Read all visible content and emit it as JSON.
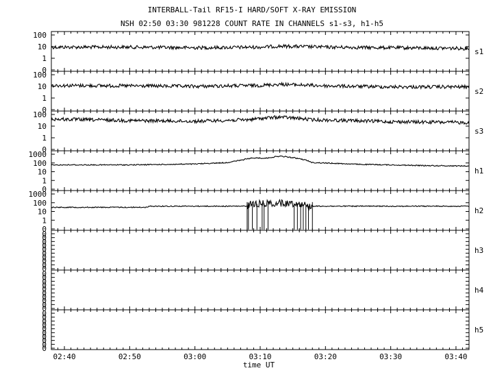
{
  "title_line1": "INTERBALL-Tail RF15-I HARD/SOFT X-RAY EMISSION",
  "title_line2": "NSH 02:50 03:30 981228  COUNT RATE IN CHANNELS s1-s3, h1-h5",
  "xlabel": "time UT",
  "chart_data": {
    "type": "line",
    "x_unit": "time UT",
    "x_range": [
      "02:38",
      "03:42"
    ],
    "x_ticks": [
      "02:40",
      "02:50",
      "03:00",
      "03:10",
      "03:20",
      "03:30",
      "03:40"
    ],
    "y_scale": "log",
    "panels": [
      {
        "name": "s1",
        "y_ticks": [
          "100",
          "10",
          "1",
          "0"
        ],
        "points": [
          [
            "02:38",
            9
          ],
          [
            "02:50",
            9
          ],
          [
            "03:00",
            8
          ],
          [
            "03:10",
            9
          ],
          [
            "03:13",
            11
          ],
          [
            "03:20",
            9
          ],
          [
            "03:30",
            8
          ],
          [
            "03:42",
            7
          ]
        ]
      },
      {
        "name": "s2",
        "y_ticks": [
          "100",
          "10",
          "1",
          "0"
        ],
        "points": [
          [
            "02:38",
            12
          ],
          [
            "02:50",
            11
          ],
          [
            "03:00",
            10
          ],
          [
            "03:10",
            12
          ],
          [
            "03:13",
            15
          ],
          [
            "03:20",
            11
          ],
          [
            "03:30",
            9
          ],
          [
            "03:42",
            9
          ]
        ]
      },
      {
        "name": "s3",
        "y_ticks": [
          "100",
          "10",
          "1",
          "0"
        ],
        "points": [
          [
            "02:38",
            40
          ],
          [
            "02:50",
            30
          ],
          [
            "03:00",
            26
          ],
          [
            "03:08",
            35
          ],
          [
            "03:13",
            60
          ],
          [
            "03:18",
            35
          ],
          [
            "03:30",
            24
          ],
          [
            "03:42",
            20
          ]
        ]
      },
      {
        "name": "h1",
        "y_ticks": [
          "1000",
          "100",
          "10",
          "1",
          "0"
        ],
        "points": [
          [
            "02:38",
            60
          ],
          [
            "02:50",
            60
          ],
          [
            "03:00",
            75
          ],
          [
            "03:05",
            110
          ],
          [
            "03:07",
            200
          ],
          [
            "03:09",
            380
          ],
          [
            "03:11",
            350
          ],
          [
            "03:13",
            600
          ],
          [
            "03:15",
            400
          ],
          [
            "03:18",
            110
          ],
          [
            "03:25",
            70
          ],
          [
            "03:35",
            50
          ],
          [
            "03:42",
            45
          ]
        ]
      },
      {
        "name": "h2",
        "y_ticks": [
          "1000",
          "100",
          "10",
          "1",
          "0"
        ],
        "points": [
          [
            "02:38",
            30
          ],
          [
            "02:52.8",
            30
          ],
          [
            "02:53",
            40
          ],
          [
            "03:08",
            40
          ],
          [
            "03:08.5",
            70
          ],
          [
            "03:12",
            90
          ],
          [
            "03:16",
            80
          ],
          [
            "03:17.5",
            40
          ],
          [
            "03:42",
            40
          ]
        ],
        "burst_range": [
          "03:08",
          "03:18"
        ],
        "dropout_times": [
          "03:08.2",
          "03:08.8",
          "03:09.5",
          "03:10.3",
          "03:10.6",
          "03:11.2",
          "03:15.2",
          "03:15.7",
          "03:16.2",
          "03:16.6",
          "03:17",
          "03:17.4"
        ]
      },
      {
        "name": "h3",
        "y_ticks": [
          "0",
          "0",
          "0",
          "0",
          "0",
          "0",
          "0",
          "0",
          "0",
          "0"
        ],
        "points": []
      },
      {
        "name": "h4",
        "y_ticks": [
          "0",
          "0",
          "0",
          "0",
          "0",
          "0",
          "0",
          "0",
          "0",
          "0"
        ],
        "points": []
      },
      {
        "name": "h5",
        "y_ticks": [
          "0",
          "0",
          "0",
          "0",
          "0",
          "0",
          "0",
          "0",
          "0",
          "0"
        ],
        "points": []
      }
    ]
  }
}
